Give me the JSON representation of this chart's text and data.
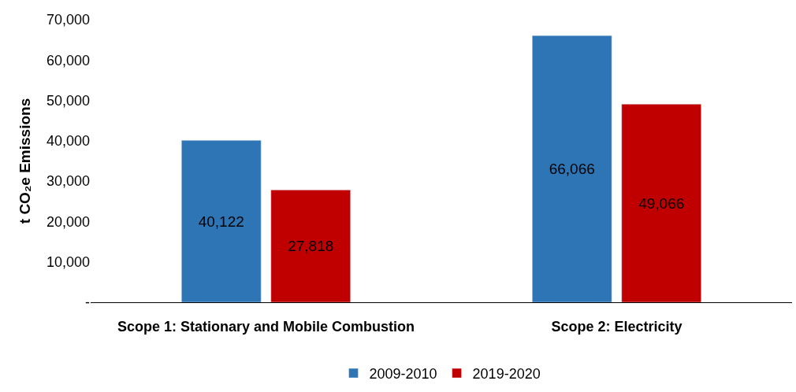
{
  "chart_data": {
    "type": "bar",
    "ylabel": "t CO₂e Emissions",
    "categories": [
      "Scope 1: Stationary and Mobile Combustion",
      "Scope 2: Electricity"
    ],
    "series": [
      {
        "name": "2009-2010",
        "color": "#2e75b6",
        "values": [
          40122,
          66066
        ],
        "value_labels": [
          "40,122",
          "66,066"
        ]
      },
      {
        "name": "2019-2020",
        "color": "#c00000",
        "values": [
          27818,
          49066
        ],
        "value_labels": [
          "27,818",
          "49,066"
        ]
      }
    ],
    "ylim": [
      0,
      70000
    ],
    "yticks": [
      {
        "value": 0,
        "label": "-"
      },
      {
        "value": 10000,
        "label": "10,000"
      },
      {
        "value": 20000,
        "label": "20,000"
      },
      {
        "value": 30000,
        "label": "30,000"
      },
      {
        "value": 40000,
        "label": "40,000"
      },
      {
        "value": 50000,
        "label": "50,000"
      },
      {
        "value": 60000,
        "label": "60,000"
      },
      {
        "value": 70000,
        "label": "70,000"
      }
    ],
    "legend": "bottom"
  }
}
